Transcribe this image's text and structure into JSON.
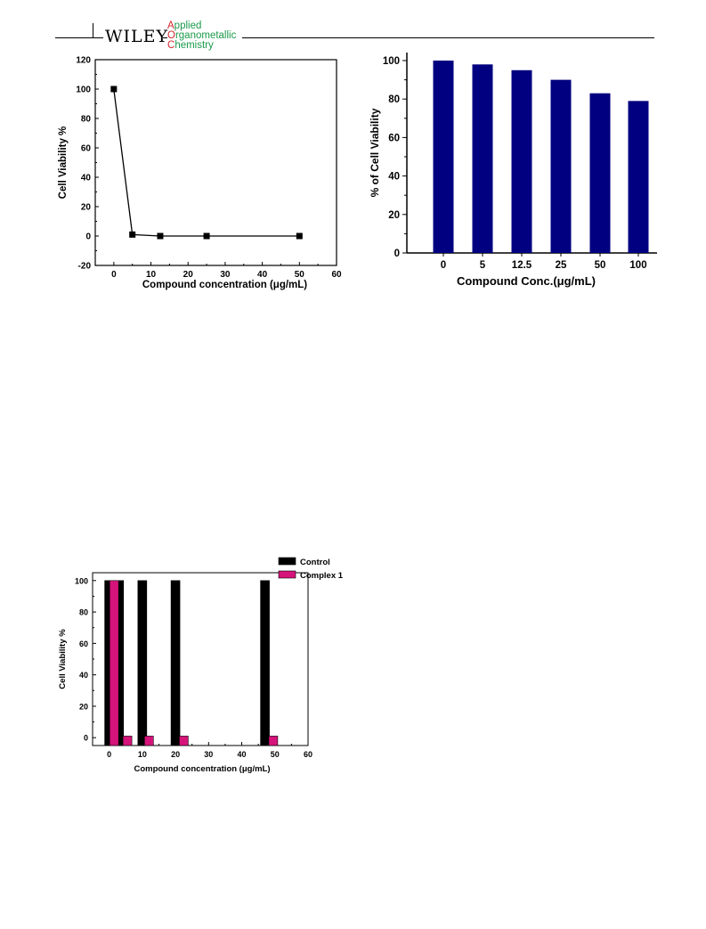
{
  "header": {
    "publisher": "WILEY",
    "journal_line1_cap": "A",
    "journal_line1_rest": "pplied",
    "journal_line2_cap": "O",
    "journal_line2_rest": "rganometallic",
    "journal_line3_cap": "C",
    "journal_line3_rest": "hemistry"
  },
  "colors": {
    "bar_navy": "#000080",
    "control": "#000000",
    "complex": "#d6137a",
    "journal_green": "#1a9a4a",
    "journal_red": "#d4262b"
  },
  "chart_data": [
    {
      "type": "line",
      "xlabel": "Compound concentration (μg/mL)",
      "ylabel": "Cell Viability %",
      "xlim": [
        -5,
        60
      ],
      "ylim": [
        -20,
        120
      ],
      "xticks": [
        0,
        10,
        20,
        30,
        40,
        50,
        60
      ],
      "yticks": [
        -20,
        0,
        20,
        40,
        60,
        80,
        100,
        120
      ],
      "marker": "square",
      "x": [
        0,
        5,
        12.5,
        25,
        50
      ],
      "y": [
        100,
        1,
        0,
        0,
        0
      ]
    },
    {
      "type": "bar",
      "xlabel": "Compound Conc.(μg/mL)",
      "ylabel": "% of Cell Viability",
      "ylim": [
        0,
        100
      ],
      "yticks": [
        0,
        20,
        40,
        60,
        80,
        100
      ],
      "categories": [
        "0",
        "5",
        "12.5",
        "25",
        "50",
        "100"
      ],
      "values": [
        100,
        98,
        95,
        90,
        83,
        79
      ]
    },
    {
      "type": "bar",
      "xlabel": "Compound concentration (μg/mL)",
      "ylabel": "Cell Viability %",
      "xlim": [
        -5,
        60
      ],
      "ylim": [
        -5,
        105
      ],
      "xticks": [
        0,
        10,
        20,
        30,
        40,
        50,
        60
      ],
      "yticks": [
        0,
        20,
        40,
        60,
        80,
        100
      ],
      "legend_position": "top-right",
      "series": [
        {
          "name": "Control",
          "x": [
            0,
            3,
            10,
            20,
            47
          ],
          "values": [
            100,
            100,
            100,
            100,
            100
          ]
        },
        {
          "name": "Complex 1",
          "x": [
            1.5,
            5.5,
            12,
            22.5,
            49.5
          ],
          "values": [
            100,
            1,
            1,
            1,
            1
          ]
        }
      ]
    }
  ]
}
